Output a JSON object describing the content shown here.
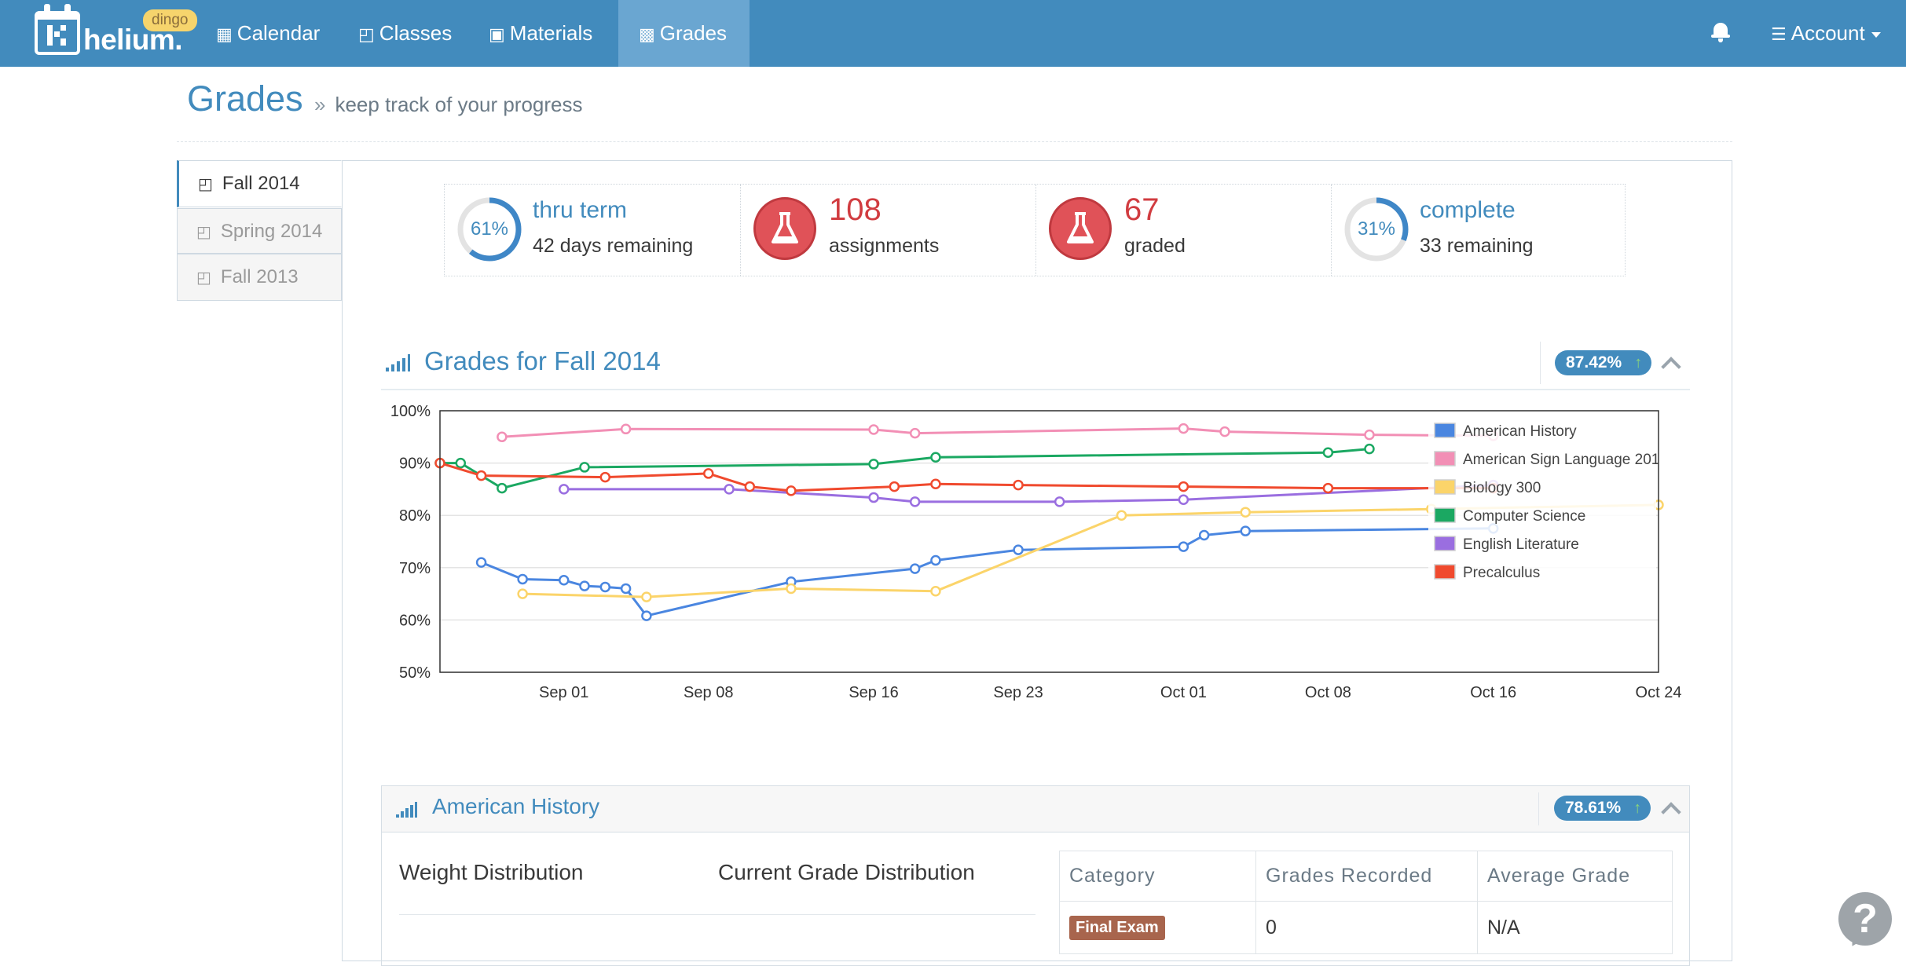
{
  "brand": {
    "name": "helium.",
    "badge": "dingo"
  },
  "nav": {
    "items": [
      {
        "label": "Calendar",
        "icon": "calendar-icon"
      },
      {
        "label": "Classes",
        "icon": "book-icon"
      },
      {
        "label": "Materials",
        "icon": "briefcase-icon"
      },
      {
        "label": "Grades",
        "icon": "bar-chart-icon",
        "active": true
      }
    ],
    "account": "Account"
  },
  "page": {
    "title": "Grades",
    "subtitle": "keep track of your progress",
    "chevron": "»"
  },
  "terms": [
    {
      "label": "Fall 2014",
      "active": true
    },
    {
      "label": "Spring 2014",
      "active": false
    },
    {
      "label": "Fall 2013",
      "active": false
    }
  ],
  "stats": {
    "term": {
      "percent": "61%",
      "fraction": 0.61,
      "title": "thru term",
      "detail": "42 days remaining"
    },
    "assignments": {
      "count": "108",
      "label": "assignments"
    },
    "graded": {
      "count": "67",
      "label": "graded"
    },
    "complete": {
      "percent": "31%",
      "fraction": 0.31,
      "title": "complete",
      "detail": "33 remaining"
    }
  },
  "grades_section": {
    "title": "Grades for Fall 2014",
    "overall": "87.42%"
  },
  "chart_data": {
    "type": "line",
    "title": "",
    "ylim": [
      50,
      100
    ],
    "yticks": [
      "100%",
      "90%",
      "80%",
      "70%",
      "60%",
      "50%"
    ],
    "xlim": [
      "2014-08-26",
      "2014-10-24"
    ],
    "xticks": [
      {
        "date": "2014-09-01",
        "label": "Sep 01"
      },
      {
        "date": "2014-09-08",
        "label": "Sep 08"
      },
      {
        "date": "2014-09-16",
        "label": "Sep 16"
      },
      {
        "date": "2014-09-23",
        "label": "Sep 23"
      },
      {
        "date": "2014-10-01",
        "label": "Oct 01"
      },
      {
        "date": "2014-10-08",
        "label": "Oct 08"
      },
      {
        "date": "2014-10-16",
        "label": "Oct 16"
      },
      {
        "date": "2014-10-24",
        "label": "Oct 24"
      }
    ],
    "legend_position": "top-right",
    "series": [
      {
        "name": "American History",
        "color": "#4a86e0",
        "points": [
          [
            "2014-08-28",
            71
          ],
          [
            "2014-08-30",
            67.8
          ],
          [
            "2014-09-01",
            67.6
          ],
          [
            "2014-09-02",
            66.5
          ],
          [
            "2014-09-03",
            66.3
          ],
          [
            "2014-09-04",
            66
          ],
          [
            "2014-09-05",
            60.8
          ],
          [
            "2014-09-12",
            67.3
          ],
          [
            "2014-09-18",
            69.8
          ],
          [
            "2014-09-19",
            71.4
          ],
          [
            "2014-09-23",
            73.4
          ],
          [
            "2014-10-01",
            74
          ],
          [
            "2014-10-02",
            76.2
          ],
          [
            "2014-10-04",
            77
          ],
          [
            "2014-10-16",
            77.5
          ]
        ]
      },
      {
        "name": "American Sign Language 201",
        "color": "#f28fb5",
        "points": [
          [
            "2014-08-29",
            95
          ],
          [
            "2014-09-04",
            96.5
          ],
          [
            "2014-09-16",
            96.4
          ],
          [
            "2014-09-18",
            95.7
          ],
          [
            "2014-10-01",
            96.6
          ],
          [
            "2014-10-03",
            96
          ],
          [
            "2014-10-10",
            95.4
          ],
          [
            "2014-10-16",
            95.2
          ]
        ]
      },
      {
        "name": "Biology 300",
        "color": "#fbd46a",
        "points": [
          [
            "2014-08-30",
            65
          ],
          [
            "2014-09-05",
            64.4
          ],
          [
            "2014-09-12",
            66
          ],
          [
            "2014-09-19",
            65.5
          ],
          [
            "2014-09-28",
            80
          ],
          [
            "2014-10-04",
            80.6
          ],
          [
            "2014-10-13",
            81.2
          ],
          [
            "2014-10-24",
            82
          ]
        ]
      },
      {
        "name": "Computer Science",
        "color": "#1ba862",
        "points": [
          [
            "2014-08-26",
            90
          ],
          [
            "2014-08-27",
            90
          ],
          [
            "2014-08-29",
            85.2
          ],
          [
            "2014-09-02",
            89.2
          ],
          [
            "2014-09-16",
            89.8
          ],
          [
            "2014-09-19",
            91.1
          ],
          [
            "2014-10-08",
            92
          ],
          [
            "2014-10-10",
            92.7
          ]
        ]
      },
      {
        "name": "English Literature",
        "color": "#9a6ee0",
        "points": [
          [
            "2014-09-01",
            85
          ],
          [
            "2014-09-09",
            85
          ],
          [
            "2014-09-16",
            83.4
          ],
          [
            "2014-09-18",
            82.6
          ],
          [
            "2014-09-25",
            82.6
          ],
          [
            "2014-10-01",
            83
          ],
          [
            "2014-10-16",
            85.8
          ]
        ]
      },
      {
        "name": "Precalculus",
        "color": "#f04a2e",
        "points": [
          [
            "2014-08-26",
            90
          ],
          [
            "2014-08-28",
            87.6
          ],
          [
            "2014-09-03",
            87.3
          ],
          [
            "2014-09-08",
            88
          ],
          [
            "2014-09-10",
            85.5
          ],
          [
            "2014-09-12",
            84.7
          ],
          [
            "2014-09-17",
            85.5
          ],
          [
            "2014-09-19",
            86
          ],
          [
            "2014-09-23",
            85.8
          ],
          [
            "2014-10-01",
            85.5
          ],
          [
            "2014-10-08",
            85.2
          ],
          [
            "2014-10-16",
            85.2
          ]
        ]
      }
    ]
  },
  "class_panel": {
    "title": "American History",
    "grade": "78.61%",
    "weight_label": "Weight Distribution",
    "current_label": "Current Grade Distribution",
    "table": {
      "headers": [
        "Category",
        "Grades Recorded",
        "Average Grade"
      ],
      "rows": [
        {
          "category": "Final Exam",
          "recorded": "0",
          "average": "N/A"
        }
      ]
    }
  },
  "help": {
    "glyph": "?"
  }
}
